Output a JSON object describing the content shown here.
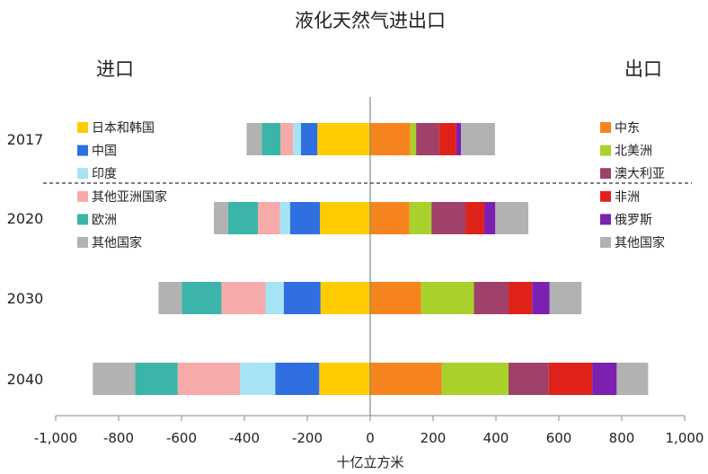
{
  "chart_data": {
    "type": "bar",
    "orientation": "horizontal",
    "stacked": true,
    "title": "液化天然气进出口",
    "left_label": "进口",
    "right_label": "出口",
    "xlabel": "十亿立方米",
    "xlim": [
      -1000,
      1000
    ],
    "xticks": [
      -1000,
      -800,
      -600,
      -400,
      -200,
      0,
      200,
      400,
      600,
      800,
      1000
    ],
    "xtick_labels": [
      "-1,000",
      "-800",
      "-600",
      "-400",
      "-200",
      "0",
      "200",
      "400",
      "600",
      "800",
      "1,000"
    ],
    "categories": [
      "2017",
      "2020",
      "2030",
      "2040"
    ],
    "import_series": [
      {
        "name": "日本和韩国",
        "color": "#FFCC00",
        "values": [
          -168,
          -160,
          -158,
          -162
        ]
      },
      {
        "name": "中国",
        "color": "#2F6FE0",
        "values": [
          -52,
          -95,
          -117,
          -140
        ]
      },
      {
        "name": "印度",
        "color": "#A6E3F5",
        "values": [
          -25,
          -32,
          -58,
          -112
        ]
      },
      {
        "name": "其他亚洲国家",
        "color": "#F7AAAA",
        "values": [
          -40,
          -70,
          -140,
          -198
        ]
      },
      {
        "name": "欧洲",
        "color": "#3BB5A7",
        "values": [
          -60,
          -95,
          -126,
          -135
        ]
      },
      {
        "name": "其他国家",
        "color": "#B2B2B2",
        "values": [
          -48,
          -45,
          -74,
          -135
        ]
      }
    ],
    "export_series": [
      {
        "name": "中东",
        "color": "#F5841F",
        "values": [
          128,
          125,
          162,
          228
        ]
      },
      {
        "name": "北美洲",
        "color": "#A8D12C",
        "values": [
          18,
          70,
          168,
          212
        ]
      },
      {
        "name": "澳大利亚",
        "color": "#A0416A",
        "values": [
          73,
          108,
          110,
          128
        ]
      },
      {
        "name": "非洲",
        "color": "#E0231A",
        "values": [
          55,
          60,
          75,
          138
        ]
      },
      {
        "name": "俄罗斯",
        "color": "#7B20B0",
        "values": [
          15,
          35,
          55,
          78
        ]
      },
      {
        "name": "其他国家",
        "color": "#B2B2B2",
        "values": [
          108,
          105,
          102,
          100
        ]
      }
    ],
    "divider": "dashed line between 2017 and 2020",
    "grid": false,
    "legend": "two columns inside plot: import legend left, export legend right"
  }
}
